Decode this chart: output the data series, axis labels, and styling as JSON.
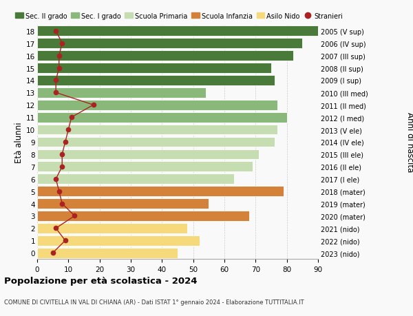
{
  "ages": [
    18,
    17,
    16,
    15,
    14,
    13,
    12,
    11,
    10,
    9,
    8,
    7,
    6,
    5,
    4,
    3,
    2,
    1,
    0
  ],
  "years": [
    "2005 (V sup)",
    "2006 (IV sup)",
    "2007 (III sup)",
    "2008 (II sup)",
    "2009 (I sup)",
    "2010 (III med)",
    "2011 (II med)",
    "2012 (I med)",
    "2013 (V ele)",
    "2014 (IV ele)",
    "2015 (III ele)",
    "2016 (II ele)",
    "2017 (I ele)",
    "2018 (mater)",
    "2019 (mater)",
    "2020 (mater)",
    "2021 (nido)",
    "2022 (nido)",
    "2023 (nido)"
  ],
  "bar_values": [
    91,
    85,
    82,
    75,
    76,
    54,
    77,
    80,
    77,
    76,
    71,
    69,
    63,
    79,
    55,
    68,
    48,
    52,
    45
  ],
  "bar_colors": [
    "#4a7a3a",
    "#4a7a3a",
    "#4a7a3a",
    "#4a7a3a",
    "#4a7a3a",
    "#8ab87a",
    "#8ab87a",
    "#8ab87a",
    "#c5ddb0",
    "#c5ddb0",
    "#c5ddb0",
    "#c5ddb0",
    "#c5ddb0",
    "#d4813a",
    "#d4813a",
    "#d4813a",
    "#f5d97a",
    "#f5d97a",
    "#f5d97a"
  ],
  "stranieri_values": [
    6,
    8,
    7,
    7,
    6,
    6,
    18,
    11,
    10,
    9,
    8,
    8,
    6,
    7,
    8,
    12,
    6,
    9,
    5
  ],
  "xlim": [
    0,
    90
  ],
  "xticks": [
    0,
    10,
    20,
    30,
    40,
    50,
    60,
    70,
    80,
    90
  ],
  "ylabel_left": "Età alunni",
  "ylabel_right": "Anni di nascita",
  "title": "Popolazione per età scolastica - 2024",
  "subtitle": "COMUNE DI CIVITELLA IN VAL DI CHIANA (AR) - Dati ISTAT 1° gennaio 2024 - Elaborazione TUTTITALIA.IT",
  "legend_labels": [
    "Sec. II grado",
    "Sec. I grado",
    "Scuola Primaria",
    "Scuola Infanzia",
    "Asilo Nido",
    "Stranieri"
  ],
  "legend_colors": [
    "#4a7a3a",
    "#8ab87a",
    "#c5ddb0",
    "#d4813a",
    "#f5d97a",
    "#aa2222"
  ],
  "stranieri_color": "#aa2222",
  "grid_color": "#cccccc",
  "bg_color": "#f9f9f9"
}
